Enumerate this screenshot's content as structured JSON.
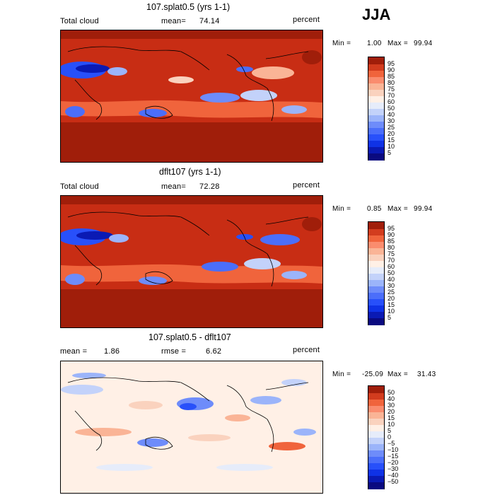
{
  "season": "JJA",
  "panels": [
    {
      "title": "107.splat0.5 (yrs 1-1)",
      "variable": "Total cloud",
      "stat_label": "mean=",
      "stat_value": "74.14",
      "units": "percent",
      "min_label": "Min =",
      "min_value": "1.00",
      "max_label": "Max =",
      "max_value": "99.94"
    },
    {
      "title": "dflt107 (yrs 1-1)",
      "variable": "Total cloud",
      "stat_label": "mean=",
      "stat_value": "72.28",
      "units": "percent",
      "min_label": "Min =",
      "min_value": "0.85",
      "max_label": "Max =",
      "max_value": "99.94"
    },
    {
      "title": "107.splat0.5 - dflt107",
      "stat_label": "mean =",
      "stat_value": "1.86",
      "stat2_label": "rmse =",
      "stat2_value": "6.62",
      "units": "percent",
      "min_label": "Min =",
      "min_value": "-25.09",
      "max_label": "Max =",
      "max_value": "31.43"
    }
  ],
  "chart_data": [
    {
      "type": "heatmap",
      "title": "107.splat0.5 (yrs 1-1)",
      "variable": "Total cloud",
      "units": "percent",
      "mean": 74.14,
      "min": 1.0,
      "max": 99.94,
      "colorbar_levels": [
        5,
        10,
        15,
        20,
        25,
        30,
        40,
        50,
        60,
        70,
        75,
        80,
        85,
        90,
        95
      ],
      "colors": [
        "#0a0a80",
        "#0a1ab4",
        "#0f32e6",
        "#2850fa",
        "#4b6efa",
        "#6e8cfa",
        "#9bb4fa",
        "#c3d2fa",
        "#e6ecfa",
        "#fff0e6",
        "#fad2be",
        "#fab496",
        "#fa8c6e",
        "#f0643c",
        "#d23c1e",
        "#a01e0a"
      ]
    },
    {
      "type": "heatmap",
      "title": "dflt107 (yrs 1-1)",
      "variable": "Total cloud",
      "units": "percent",
      "mean": 72.28,
      "min": 0.85,
      "max": 99.94,
      "colorbar_levels": [
        5,
        10,
        15,
        20,
        25,
        30,
        40,
        50,
        60,
        70,
        75,
        80,
        85,
        90,
        95
      ],
      "colors": [
        "#0a0a80",
        "#0a1ab4",
        "#0f32e6",
        "#2850fa",
        "#4b6efa",
        "#6e8cfa",
        "#9bb4fa",
        "#c3d2fa",
        "#e6ecfa",
        "#fff0e6",
        "#fad2be",
        "#fab496",
        "#fa8c6e",
        "#f0643c",
        "#d23c1e",
        "#a01e0a"
      ]
    },
    {
      "type": "heatmap",
      "title": "107.splat0.5 - dflt107",
      "units": "percent",
      "mean": 1.86,
      "rmse": 6.62,
      "min": -25.09,
      "max": 31.43,
      "colorbar_levels": [
        -50,
        -40,
        -30,
        -20,
        -15,
        -10,
        -5,
        0,
        5,
        10,
        15,
        20,
        30,
        40,
        50
      ],
      "colors": [
        "#0a0a80",
        "#0a1ab4",
        "#0f32e6",
        "#2850fa",
        "#4b6efa",
        "#6e8cfa",
        "#9bb4fa",
        "#c3d2fa",
        "#e6ecfa",
        "#fff0e6",
        "#fad2be",
        "#fab496",
        "#fa8c6e",
        "#f0643c",
        "#d23c1e",
        "#a01e0a"
      ]
    }
  ]
}
